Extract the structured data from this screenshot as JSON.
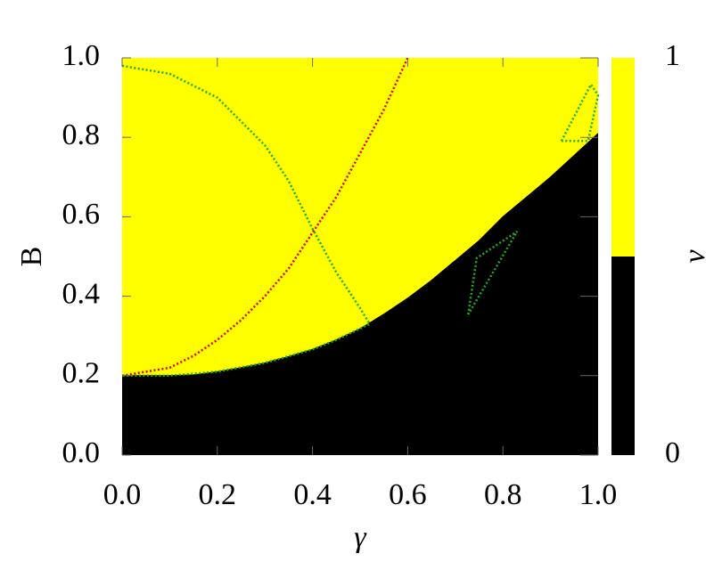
{
  "chart_data": {
    "type": "phase",
    "x_label": "γ",
    "y_label": "B",
    "xlim": [
      0,
      1
    ],
    "ylim": [
      0,
      1
    ],
    "xticks": [
      {
        "value": 0,
        "label": "0.0"
      },
      {
        "value": 0.2,
        "label": "0.2"
      },
      {
        "value": 0.4,
        "label": "0.4"
      },
      {
        "value": 0.6,
        "label": "0.6"
      },
      {
        "value": 0.8,
        "label": "0.8"
      },
      {
        "value": 1,
        "label": "1.0"
      }
    ],
    "yticks": [
      {
        "value": 0,
        "label": "0.0"
      },
      {
        "value": 0.2,
        "label": "0.2"
      },
      {
        "value": 0.4,
        "label": "0.4"
      },
      {
        "value": 0.6,
        "label": "0.6"
      },
      {
        "value": 0.8,
        "label": "0.8"
      },
      {
        "value": 1,
        "label": "1.0"
      }
    ],
    "colorbar": {
      "label": "ν",
      "ticks": [
        0,
        1
      ],
      "colors": [
        "#000000",
        "#ffff00"
      ]
    },
    "boundary": {
      "x": [
        0,
        0.05,
        0.1,
        0.15,
        0.2,
        0.25,
        0.3,
        0.35,
        0.4,
        0.45,
        0.5,
        0.55,
        0.6,
        0.65,
        0.7,
        0.75,
        0.8,
        0.85,
        0.9,
        0.95,
        1.0
      ],
      "values": [
        0.2,
        0.2,
        0.2,
        0.202,
        0.21,
        0.22,
        0.232,
        0.248,
        0.266,
        0.29,
        0.318,
        0.355,
        0.395,
        0.44,
        0.49,
        0.54,
        0.6,
        0.65,
        0.7,
        0.755,
        0.81
      ]
    },
    "curves": [
      {
        "color": "#e00000",
        "x": [
          0,
          0.05,
          0.1,
          0.15,
          0.2,
          0.25,
          0.3,
          0.35,
          0.4,
          0.45,
          0.5,
          0.55,
          0.6
        ],
        "values": [
          0.2,
          0.21,
          0.22,
          0.25,
          0.29,
          0.34,
          0.4,
          0.47,
          0.56,
          0.65,
          0.76,
          0.87,
          1.0
        ]
      },
      {
        "color": "#22aa22",
        "x": [
          0,
          0.1,
          0.2,
          0.3,
          0.35,
          0.4,
          0.45,
          0.5,
          0.52,
          0.45,
          0.4,
          0.3,
          0.2,
          0.1,
          0
        ],
        "values": [
          0.98,
          0.96,
          0.9,
          0.78,
          0.69,
          0.57,
          0.46,
          0.37,
          0.33,
          0.29,
          0.266,
          0.232,
          0.21,
          0.2,
          0.2
        ]
      },
      {
        "color": "#22aa22",
        "x": [
          0.727,
          0.745,
          0.83,
          0.727
        ],
        "values": [
          0.354,
          0.496,
          0.563,
          0.354
        ]
      },
      {
        "color": "#22aa22",
        "x": [
          0.923,
          0.985,
          1.0,
          0.979,
          0.923
        ],
        "values": [
          0.791,
          0.933,
          0.906,
          0.791,
          0.791
        ]
      }
    ]
  }
}
